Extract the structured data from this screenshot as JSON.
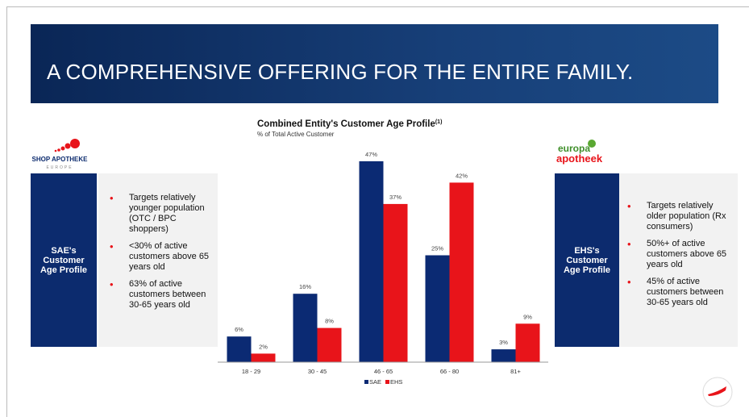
{
  "slide_title": "A COMPREHENSIVE OFFERING FOR THE ENTIRE FAMILY.",
  "left_panel": {
    "logo": "SHOP APOTHEKE",
    "logo_sub": "EUROPE",
    "heading": "SAE's Customer Age Profile",
    "bullets": [
      "Targets relatively younger population (OTC / BPC shoppers)",
      "<30% of active customers above 65 years old",
      "63% of active customers between 30-65 years old"
    ]
  },
  "right_panel": {
    "logo": "europa",
    "logo_line2": "apotheek",
    "heading": "EHS's Customer Age Profile",
    "bullets": [
      "Targets relatively older population (Rx consumers)",
      "50%+ of active customers above 65 years old",
      "45% of active customers between 30-65 years old"
    ]
  },
  "chart_data": {
    "type": "bar",
    "title": "Combined Entity's Customer Age Profile",
    "title_note": "(1)",
    "subtitle": "% of Total Active Customer",
    "categories": [
      "18 - 29",
      "30 - 45",
      "46 - 65",
      "66 - 80",
      "81+"
    ],
    "series": [
      {
        "name": "SAE",
        "color": "#0b2a73",
        "values": [
          6,
          16,
          47,
          25,
          3
        ],
        "value_labels": [
          "6%",
          "16%",
          "47%",
          "25%",
          "3%"
        ]
      },
      {
        "name": "EHS",
        "color": "#e8141a",
        "values": [
          2,
          8,
          37,
          42,
          9
        ],
        "value_labels": [
          "2%",
          "8%",
          "37%",
          "42%",
          "9%"
        ]
      }
    ],
    "ylim": [
      0,
      50
    ],
    "legend": "bottom"
  }
}
